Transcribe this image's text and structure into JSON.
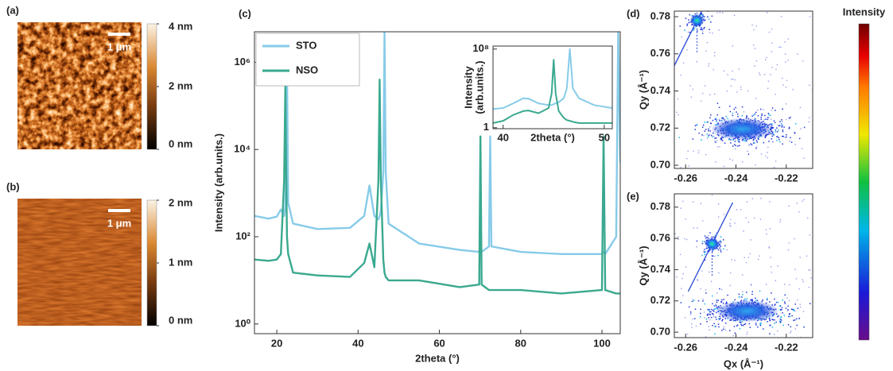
{
  "chart_data": [
    {
      "type": "image",
      "panel": "(a)",
      "scale_bar": "1 μm",
      "clim": [
        0,
        4
      ],
      "cticks": [
        {
          "value": 4,
          "label": "4 nm"
        },
        {
          "value": 2,
          "label": "2 nm"
        },
        {
          "value": 0,
          "label": "0 nm"
        }
      ]
    },
    {
      "type": "image",
      "panel": "(b)",
      "scale_bar": "1 μm",
      "clim": [
        0,
        2
      ],
      "cticks": [
        {
          "value": 2,
          "label": "2 nm"
        },
        {
          "value": 1,
          "label": "1 nm"
        },
        {
          "value": 0,
          "label": "0 nm"
        }
      ]
    },
    {
      "type": "line",
      "panel": "(c)",
      "xlabel": "2theta (°)",
      "ylabel": "Intensity (arb.units.)",
      "yscale": "log",
      "legend": "upper left",
      "xlim": [
        14.5,
        104.5
      ],
      "xticks": [
        20,
        40,
        60,
        80,
        100
      ],
      "ylim": [
        0.6,
        5000000
      ],
      "yticks": [
        {
          "value": 1,
          "label": "10⁰"
        },
        {
          "value": 100,
          "label": "10²"
        },
        {
          "value": 10000,
          "label": "10⁴"
        },
        {
          "value": 1000000,
          "label": "10⁶"
        }
      ],
      "x": [
        14.5,
        18,
        20,
        21,
        21.8,
        22.1,
        22.3,
        22.5,
        22.8,
        24,
        30,
        38,
        41.5,
        42.8,
        44,
        45.0,
        45.3,
        45.6,
        46.2,
        46.5,
        46.8,
        47.5,
        55,
        65,
        69.8,
        70.1,
        70.4,
        72.2,
        72.5,
        72.8,
        80,
        90,
        100,
        100.4,
        100.8,
        103.5,
        104,
        104.5
      ],
      "series": [
        {
          "name": "STO",
          "color": "#87cbe9",
          "values": [
            300,
            260,
            290,
            420,
            300,
            500,
            5000,
            800000,
            600,
            200,
            150,
            160,
            300,
            1500,
            300,
            250,
            300,
            400,
            3000,
            5000000,
            3000,
            200,
            70,
            50,
            45,
            60,
            45,
            60,
            20000,
            60,
            45,
            40,
            40,
            45,
            40,
            100,
            5000000,
            5000
          ]
        },
        {
          "name": "NSO",
          "color": "#3aa98f",
          "values": [
            30,
            28,
            30,
            40,
            2000,
            300000,
            3000,
            100,
            40,
            15,
            13,
            12,
            25,
            70,
            20,
            2000,
            400000,
            2000,
            30,
            15,
            12,
            10,
            10,
            7,
            8,
            20000,
            8,
            6,
            6,
            6,
            6,
            5,
            6,
            20000,
            6,
            5,
            5,
            5
          ]
        }
      ]
    },
    {
      "type": "line",
      "xlabel": "2theta (°)",
      "ylabel": [
        "Intensity",
        "(arb.units.)"
      ],
      "yscale": "log",
      "xlim": [
        39,
        50.8
      ],
      "xticks": [
        40,
        50
      ],
      "ylim": [
        0.8,
        200000000
      ],
      "yticks": [
        1,
        {
          "value": 100000000,
          "label": "10⁸"
        }
      ],
      "x": [
        39,
        40,
        41,
        42,
        42.5,
        43.5,
        44.5,
        44.8,
        45.0,
        45.2,
        45.5,
        46,
        46.3,
        46.6,
        46.9,
        47.5,
        49,
        50.8
      ],
      "series": [
        {
          "color": "#87cbe9",
          "values": [
            80,
            100,
            300,
            1000,
            900,
            300,
            200,
            200,
            250,
            300,
            400,
            1000,
            10000,
            100000000,
            10000,
            1000,
            200,
            100
          ]
        },
        {
          "color": "#3aa98f",
          "values": [
            3,
            5,
            20,
            50,
            56,
            30,
            100,
            3000,
            8000000,
            3000,
            50,
            10,
            6,
            5,
            4,
            3,
            3,
            3
          ]
        }
      ]
    },
    {
      "type": "scatter",
      "panel": "(d)",
      "xlabel": "Qx (Å⁻¹)",
      "ylabel": "Qy (Å⁻¹)",
      "show_xlabel": false,
      "xlim": [
        -0.2645,
        -0.2095
      ],
      "xticks": [
        -0.26,
        -0.24,
        -0.22
      ],
      "ylim": [
        0.6983,
        0.783
      ],
      "yticks": [
        {
          "value": 0.7,
          "label": "0.70"
        },
        0.72,
        0.74,
        0.76,
        0.78
      ],
      "x": [
        -0.2555,
        -0.2375
      ],
      "y": [
        0.778,
        0.7195
      ]
    },
    {
      "type": "scatter",
      "panel": "(e)",
      "xlabel": "Qx (Å⁻¹)",
      "ylabel": "Qy (Å⁻¹)",
      "show_xlabel": true,
      "xlim": [
        -0.2645,
        -0.2095
      ],
      "xticks": [
        -0.26,
        -0.24,
        -0.22
      ],
      "ylim": [
        0.6965,
        0.7885
      ],
      "yticks": [
        {
          "value": 0.7,
          "label": "0.70"
        },
        0.72,
        0.74,
        0.76,
        0.78
      ],
      "x": [
        -0.2495,
        -0.2355
      ],
      "y": [
        0.7565,
        0.7135
      ]
    },
    {
      "type": "colorbar",
      "title": "Intensity"
    }
  ]
}
